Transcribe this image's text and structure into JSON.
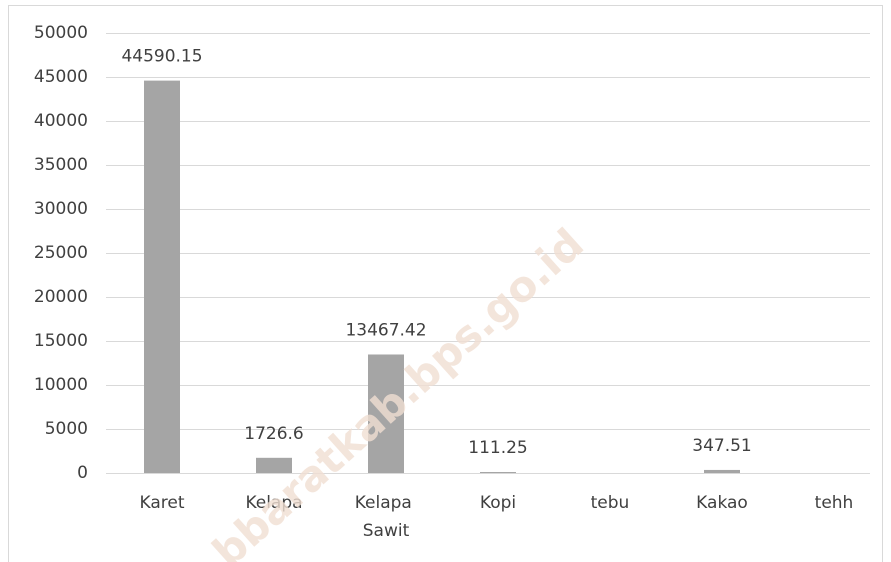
{
  "chart_data": {
    "type": "bar",
    "categories": [
      "Karet",
      "Kelapa",
      "Kelapa Sawit",
      "Kopi",
      "tebu",
      "Kakao",
      "tehh"
    ],
    "values": [
      44590.15,
      1726.6,
      13467.42,
      111.25,
      null,
      347.51,
      null
    ],
    "color": "#a5a5a5",
    "ylim": [
      0,
      50000
    ],
    "yticks": [
      0,
      5000,
      10000,
      15000,
      20000,
      25000,
      30000,
      35000,
      40000,
      45000,
      50000
    ],
    "grid": true,
    "watermark": "bbaratkab.bps.go.id"
  }
}
